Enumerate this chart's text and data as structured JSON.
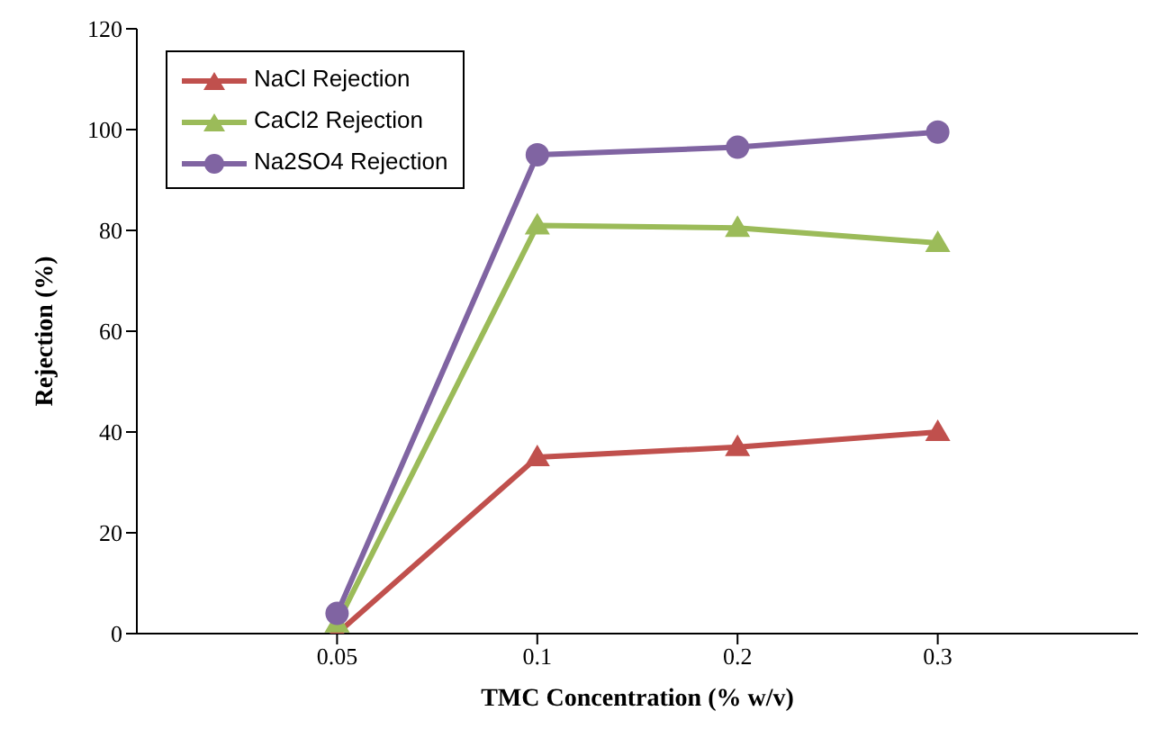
{
  "chart_data": {
    "type": "line",
    "xlabel": "TMC Concentration (% w/v)",
    "ylabel": "Rejection (%)",
    "categories": [
      "0.05",
      "0.1",
      "0.2",
      "0.3"
    ],
    "series": [
      {
        "name": "NaCl Rejection",
        "color": "#c0504d",
        "marker": "triangle",
        "values": [
          0,
          35,
          37,
          40
        ]
      },
      {
        "name": "CaCl2 Rejection",
        "color": "#9bbb59",
        "marker": "triangle",
        "values": [
          2,
          81,
          80.5,
          77.5
        ]
      },
      {
        "name": "Na2SO4 Rejection",
        "color": "#8064a2",
        "marker": "circle",
        "values": [
          4,
          95,
          96.5,
          99.5
        ]
      }
    ],
    "ylim": [
      0,
      120
    ],
    "yticks": [
      0,
      20,
      40,
      60,
      80,
      100,
      120
    ],
    "grid": false,
    "legend": "top left",
    "line_style": "solid"
  }
}
